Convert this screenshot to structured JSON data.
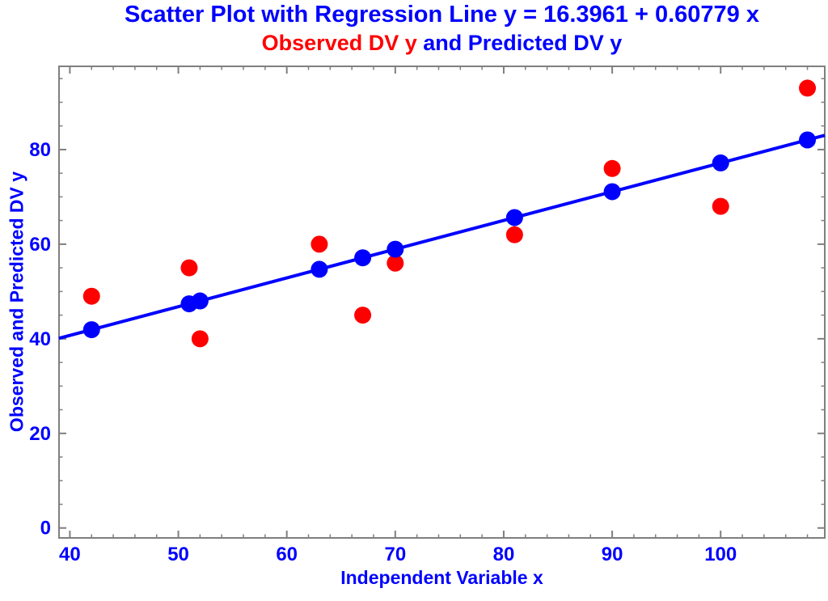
{
  "page": {
    "background": "#ffffff"
  },
  "chart_data": {
    "type": "scatter",
    "title": {
      "text": "Scatter Plot with Regression Line y = 16.3961 + 0.60779 x",
      "color": "#0000ff"
    },
    "subtitle": {
      "parts": [
        {
          "text": "Observed DV y",
          "color": "#ff0000"
        },
        {
          "text": " and Predicted DV y",
          "color": "#0000ff"
        }
      ]
    },
    "xlabel": "Independent Variable x",
    "ylabel": "Observed and Predicted DV y",
    "text_color": "#0000ff",
    "frame_color": "#7f7f7f",
    "x": [
      42,
      51,
      52,
      63,
      67,
      70,
      81,
      90,
      100,
      108
    ],
    "series": [
      {
        "name": "Observed DV y",
        "marker": "circle",
        "color": "#ff0000",
        "values": [
          49,
          55,
          40,
          60,
          45,
          56,
          62,
          76,
          68,
          93
        ]
      },
      {
        "name": "Predicted DV y",
        "marker": "circle",
        "color": "#0000ff",
        "values": [
          41.92,
          47.39,
          48.0,
          54.69,
          57.12,
          58.94,
          65.63,
          71.1,
          77.18,
          82.04
        ]
      }
    ],
    "regression_line": {
      "intercept": 16.3961,
      "slope": 0.60779,
      "color": "#0000ff"
    },
    "xlim": [
      39.0,
      109.6
    ],
    "ylim": [
      -2.1,
      97.6
    ],
    "x_ticks": {
      "major": [
        40,
        50,
        60,
        70,
        80,
        90,
        100
      ],
      "minor_step": 2
    },
    "y_ticks": {
      "major": [
        0,
        20,
        40,
        60,
        80
      ],
      "minor_step": 5
    },
    "grid": false,
    "legend": "none"
  }
}
